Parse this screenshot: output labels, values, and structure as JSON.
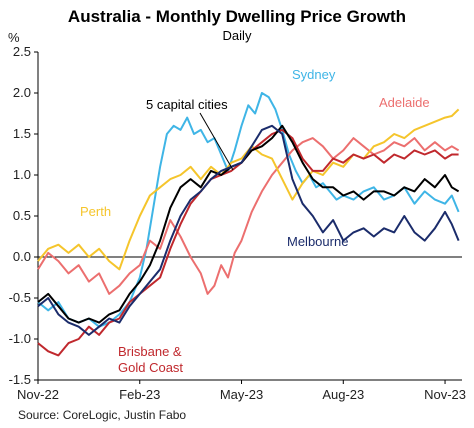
{
  "chart_data": {
    "type": "line",
    "title": "Australia - Monthly Dwelling Price Growth",
    "subtitle": "Daily",
    "unit_label": "%",
    "source": "Source: CoreLogic, Justin Fabo",
    "ylim": [
      -1.5,
      2.5
    ],
    "yticks": [
      "2.5",
      "2.0",
      "1.5",
      "1.0",
      "0.5",
      "0.0",
      "-0.5",
      "-1.0",
      "-1.5"
    ],
    "xlim": [
      0,
      12.5
    ],
    "xticks": [
      {
        "pos": 0,
        "label": "Nov-22"
      },
      {
        "pos": 3,
        "label": "Feb-23"
      },
      {
        "pos": 6,
        "label": "May-23"
      },
      {
        "pos": 9,
        "label": "Aug-23"
      },
      {
        "pos": 12,
        "label": "Nov-23"
      }
    ],
    "grid": false,
    "series": [
      {
        "name": "Sydney",
        "color": "#3fb5e6",
        "x": [
          0,
          0.3,
          0.6,
          0.9,
          1.2,
          1.5,
          1.8,
          2.1,
          2.4,
          2.7,
          3.0,
          3.2,
          3.4,
          3.6,
          3.8,
          4.0,
          4.2,
          4.4,
          4.6,
          4.8,
          5.0,
          5.2,
          5.4,
          5.6,
          5.8,
          6.0,
          6.2,
          6.4,
          6.6,
          6.8,
          7.0,
          7.2,
          7.4,
          7.6,
          7.8,
          8.0,
          8.2,
          8.4,
          8.6,
          8.8,
          9.0,
          9.3,
          9.6,
          9.9,
          10.2,
          10.5,
          10.8,
          11.1,
          11.4,
          11.7,
          12.0,
          12.2,
          12.4
        ],
        "y": [
          -0.55,
          -0.65,
          -0.55,
          -0.75,
          -0.8,
          -0.75,
          -0.85,
          -0.8,
          -0.7,
          -0.55,
          -0.25,
          0.1,
          0.6,
          1.1,
          1.5,
          1.6,
          1.55,
          1.7,
          1.5,
          1.55,
          1.4,
          1.45,
          1.25,
          1.05,
          1.3,
          1.6,
          1.85,
          1.75,
          2.0,
          1.95,
          1.8,
          1.55,
          1.25,
          1.05,
          0.9,
          1.0,
          0.85,
          0.9,
          0.8,
          0.7,
          0.75,
          0.7,
          0.8,
          0.85,
          0.7,
          0.75,
          0.85,
          0.65,
          0.8,
          0.7,
          0.65,
          0.75,
          0.55
        ]
      },
      {
        "name": "Adelaide",
        "color": "#ec6f6f",
        "x": [
          0,
          0.3,
          0.6,
          0.9,
          1.2,
          1.5,
          1.8,
          2.1,
          2.4,
          2.7,
          3.0,
          3.3,
          3.6,
          3.9,
          4.2,
          4.5,
          4.8,
          5.0,
          5.2,
          5.4,
          5.6,
          5.8,
          6.0,
          6.3,
          6.6,
          6.9,
          7.2,
          7.5,
          7.8,
          8.1,
          8.4,
          8.7,
          9.0,
          9.3,
          9.6,
          9.9,
          10.2,
          10.5,
          10.8,
          11.1,
          11.4,
          11.7,
          12.0,
          12.2,
          12.4
        ],
        "y": [
          -0.15,
          0.05,
          -0.05,
          -0.2,
          -0.1,
          -0.3,
          -0.2,
          -0.45,
          -0.35,
          -0.2,
          -0.1,
          0.2,
          0.1,
          0.45,
          0.25,
          0.0,
          -0.2,
          -0.45,
          -0.35,
          -0.1,
          -0.25,
          0.05,
          0.2,
          0.55,
          0.8,
          1.0,
          1.15,
          1.3,
          1.4,
          1.45,
          1.35,
          1.2,
          1.3,
          1.45,
          1.35,
          1.25,
          1.3,
          1.4,
          1.35,
          1.45,
          1.3,
          1.4,
          1.3,
          1.35,
          1.3
        ]
      },
      {
        "name": "Perth",
        "color": "#f5c52c",
        "x": [
          0,
          0.3,
          0.6,
          0.9,
          1.2,
          1.5,
          1.8,
          2.1,
          2.4,
          2.7,
          3.0,
          3.3,
          3.6,
          3.9,
          4.2,
          4.5,
          4.8,
          5.1,
          5.4,
          5.7,
          6.0,
          6.3,
          6.6,
          6.9,
          7.2,
          7.5,
          7.8,
          8.1,
          8.4,
          8.7,
          9.0,
          9.3,
          9.6,
          9.9,
          10.2,
          10.5,
          10.8,
          11.1,
          11.4,
          11.7,
          12.0,
          12.2,
          12.4
        ],
        "y": [
          -0.05,
          0.1,
          0.15,
          0.05,
          0.15,
          0.0,
          0.1,
          -0.05,
          -0.15,
          0.2,
          0.5,
          0.75,
          0.85,
          0.95,
          1.0,
          1.1,
          0.95,
          1.1,
          1.0,
          1.15,
          1.2,
          1.35,
          1.25,
          1.2,
          0.95,
          0.7,
          0.9,
          1.05,
          1.0,
          1.15,
          1.1,
          1.25,
          1.2,
          1.35,
          1.4,
          1.5,
          1.45,
          1.55,
          1.6,
          1.65,
          1.7,
          1.72,
          1.8
        ]
      },
      {
        "name": "Brisbane & Gold Coast",
        "color": "#c0282d",
        "x": [
          0,
          0.3,
          0.6,
          0.9,
          1.2,
          1.5,
          1.8,
          2.1,
          2.4,
          2.7,
          3.0,
          3.3,
          3.6,
          3.9,
          4.2,
          4.5,
          4.8,
          5.1,
          5.4,
          5.7,
          6.0,
          6.3,
          6.6,
          6.9,
          7.2,
          7.5,
          7.8,
          8.1,
          8.4,
          8.7,
          9.0,
          9.3,
          9.6,
          9.9,
          10.2,
          10.5,
          10.8,
          11.1,
          11.4,
          11.7,
          12.0,
          12.2,
          12.4
        ],
        "y": [
          -1.05,
          -1.15,
          -1.2,
          -1.05,
          -1.0,
          -0.85,
          -0.95,
          -0.8,
          -0.75,
          -0.55,
          -0.45,
          -0.35,
          -0.25,
          0.1,
          0.4,
          0.65,
          0.8,
          0.95,
          1.0,
          1.05,
          1.15,
          1.3,
          1.4,
          1.5,
          1.55,
          1.45,
          1.2,
          1.05,
          1.05,
          1.2,
          1.15,
          1.25,
          1.2,
          1.25,
          1.15,
          1.25,
          1.2,
          1.3,
          1.25,
          1.3,
          1.2,
          1.25,
          1.25
        ]
      },
      {
        "name": "5 capital cities",
        "color": "#000000",
        "x": [
          0,
          0.3,
          0.6,
          0.9,
          1.2,
          1.5,
          1.8,
          2.1,
          2.4,
          2.7,
          3.0,
          3.3,
          3.6,
          3.9,
          4.2,
          4.5,
          4.8,
          5.1,
          5.4,
          5.7,
          6.0,
          6.3,
          6.6,
          6.9,
          7.2,
          7.5,
          7.8,
          8.1,
          8.4,
          8.7,
          9.0,
          9.3,
          9.6,
          9.9,
          10.2,
          10.5,
          10.8,
          11.1,
          11.4,
          11.7,
          12.0,
          12.2,
          12.4
        ],
        "y": [
          -0.55,
          -0.45,
          -0.6,
          -0.75,
          -0.8,
          -0.75,
          -0.8,
          -0.7,
          -0.65,
          -0.45,
          -0.3,
          -0.1,
          0.2,
          0.6,
          0.85,
          0.95,
          0.85,
          1.05,
          1.0,
          1.1,
          1.15,
          1.3,
          1.35,
          1.45,
          1.6,
          1.4,
          1.15,
          0.95,
          0.85,
          0.85,
          0.75,
          0.8,
          0.7,
          0.8,
          0.8,
          0.75,
          0.85,
          0.8,
          0.95,
          0.85,
          1.0,
          0.85,
          0.8
        ]
      },
      {
        "name": "Melbourne",
        "color": "#1b2c6b",
        "x": [
          0,
          0.3,
          0.6,
          0.9,
          1.2,
          1.5,
          1.8,
          2.1,
          2.4,
          2.7,
          3.0,
          3.3,
          3.6,
          3.9,
          4.2,
          4.5,
          4.8,
          5.1,
          5.4,
          5.7,
          6.0,
          6.3,
          6.6,
          6.9,
          7.2,
          7.5,
          7.8,
          8.1,
          8.4,
          8.7,
          9.0,
          9.3,
          9.6,
          9.9,
          10.2,
          10.5,
          10.8,
          11.1,
          11.4,
          11.7,
          12.0,
          12.2,
          12.4
        ],
        "y": [
          -0.6,
          -0.5,
          -0.7,
          -0.8,
          -0.85,
          -0.95,
          -0.85,
          -0.75,
          -0.8,
          -0.6,
          -0.45,
          -0.3,
          -0.15,
          0.2,
          0.5,
          0.7,
          0.8,
          0.95,
          1.05,
          1.1,
          1.15,
          1.35,
          1.55,
          1.6,
          1.5,
          0.95,
          0.65,
          0.5,
          0.3,
          0.45,
          0.2,
          0.3,
          0.35,
          0.25,
          0.35,
          0.3,
          0.5,
          0.3,
          0.2,
          0.35,
          0.55,
          0.4,
          0.2
        ]
      }
    ],
    "labels": {
      "sydney": "Sydney",
      "adelaide": "Adelaide",
      "perth": "Perth",
      "caps": "5 capital cities",
      "melbourne": "Melbourne",
      "bris1": "Brisbane &",
      "bris2": "Gold Coast"
    }
  }
}
